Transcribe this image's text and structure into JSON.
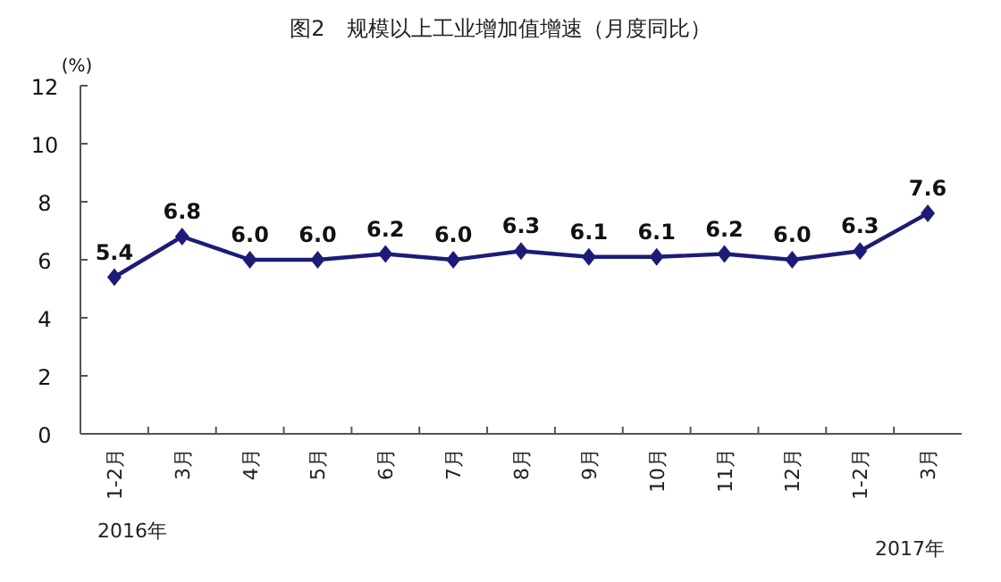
{
  "chart_data": {
    "type": "line",
    "title": "图2　规模以上工业增加值增速（月度同比）",
    "ylabel": "(%)",
    "categories": [
      "1-2月",
      "3月",
      "4月",
      "5月",
      "6月",
      "7月",
      "8月",
      "9月",
      "10月",
      "11月",
      "12月",
      "1-2月",
      "3月"
    ],
    "series": [
      {
        "color": "#1c1c78",
        "values": [
          5.4,
          6.8,
          6.0,
          6.0,
          6.2,
          6.0,
          6.3,
          6.1,
          6.1,
          6.2,
          6.0,
          6.3,
          7.6
        ],
        "value_labels": [
          "5.4",
          "6.8",
          "6.0",
          "6.0",
          "6.2",
          "6.0",
          "6.3",
          "6.1",
          "6.1",
          "6.2",
          "6.0",
          "6.3",
          "7.6"
        ]
      }
    ],
    "ylim": [
      0,
      12
    ],
    "yticks": [
      0,
      2,
      4,
      6,
      8,
      10,
      12
    ],
    "marker": "diamond",
    "line_style": "solid",
    "grid": false,
    "annotations": [
      "2016年",
      "2017年"
    ]
  }
}
